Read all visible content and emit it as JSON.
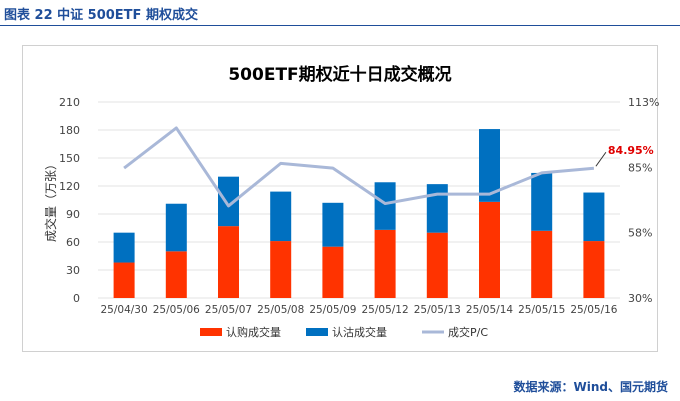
{
  "figure_title": "图表 22  中证 500ETF 期权成交",
  "source": "数据来源：Wind、国元期货",
  "chart_data": {
    "type": "bar",
    "title": "500ETF期权近十日成交概况",
    "ylabel": "成交量（万张）",
    "ylim": [
      0,
      210
    ],
    "yticks": [
      0,
      30,
      60,
      90,
      120,
      150,
      180,
      210
    ],
    "y2lim": [
      0.3,
      1.13
    ],
    "y2ticks": [
      "30%",
      "58%",
      "85%",
      "113%"
    ],
    "categories": [
      "25/04/30",
      "25/05/06",
      "25/05/07",
      "25/05/08",
      "25/05/09",
      "25/05/12",
      "25/05/13",
      "25/05/14",
      "25/05/15",
      "25/05/16"
    ],
    "series": [
      {
        "name": "认购成交量",
        "kind": "bar-stack",
        "color": "#ff3300",
        "values": [
          38,
          50,
          77,
          61,
          55,
          73,
          70,
          103,
          72,
          61
        ]
      },
      {
        "name": "认沽成交量",
        "kind": "bar-stack",
        "color": "#0070c0",
        "values": [
          32,
          51,
          53,
          53,
          47,
          51,
          52,
          78,
          62,
          52
        ]
      },
      {
        "name": "成交P/C",
        "kind": "line",
        "axis": "right",
        "color": "#a9b8d8",
        "values": [
          0.85,
          1.02,
          0.69,
          0.87,
          0.85,
          0.7,
          0.74,
          0.74,
          0.83,
          0.8495
        ]
      }
    ],
    "annotations": [
      {
        "text": "84.95%",
        "series": "成交P/C",
        "index": 9,
        "color": "#e00000"
      }
    ],
    "legend_position": "bottom",
    "grid": true
  }
}
